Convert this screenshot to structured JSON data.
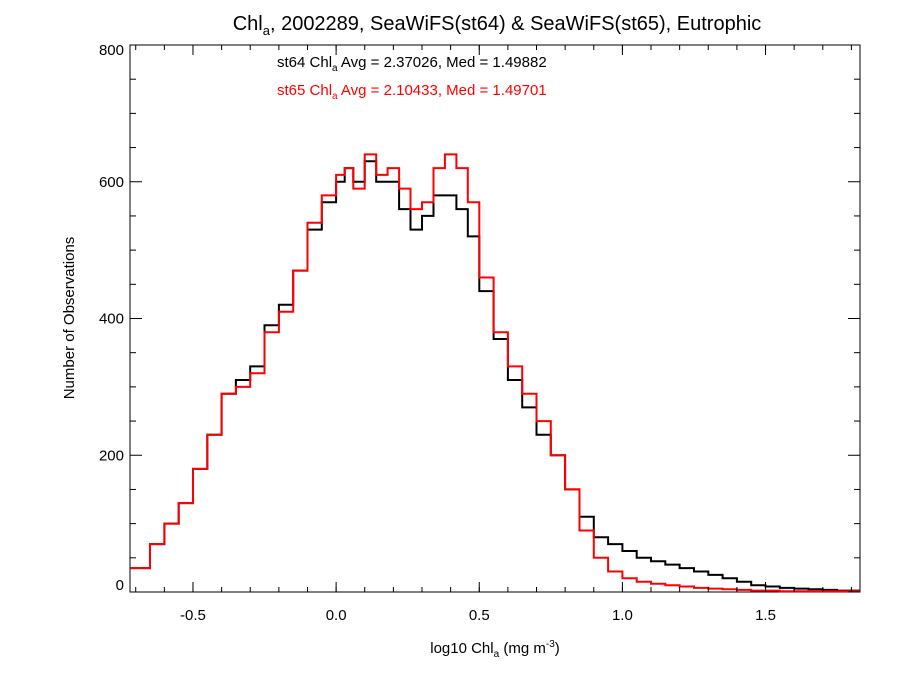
{
  "chart_data": {
    "type": "line",
    "step": true,
    "title": {
      "pre": "Chl",
      "sub": "a",
      "post": ", 2002289, SeaWiFS(st64) & SeaWiFS(st65), Eutrophic"
    },
    "xlabel": {
      "pre": "log10 Chl",
      "sub": "a",
      "mid": " (mg m",
      "sup": "-3",
      "post": ")"
    },
    "ylabel": "Number of Observations",
    "xlim": [
      -0.72,
      1.83
    ],
    "ylim": [
      0,
      800
    ],
    "xticks": [
      "-0.5",
      "0.0",
      "0.5",
      "1.0",
      "1.5"
    ],
    "yticks": [
      "0",
      "200",
      "400",
      "600",
      "800"
    ],
    "grid": false,
    "annotations": [
      {
        "pre": "st64 Chl",
        "sub": "a",
        "post": " Avg = 2.37026, Med = 1.49882",
        "color": "#000000"
      },
      {
        "pre": "st65 Chl",
        "sub": "a",
        "post": " Avg = 2.10433, Med = 1.49701",
        "color": "#ff0000"
      }
    ],
    "series": [
      {
        "color": "#000000",
        "x": [
          -0.72,
          -0.65,
          -0.6,
          -0.55,
          -0.5,
          -0.45,
          -0.4,
          -0.35,
          -0.3,
          -0.25,
          -0.2,
          -0.15,
          -0.1,
          -0.05,
          0.0,
          0.03,
          0.06,
          0.1,
          0.14,
          0.18,
          0.22,
          0.26,
          0.3,
          0.34,
          0.38,
          0.42,
          0.46,
          0.5,
          0.55,
          0.6,
          0.65,
          0.7,
          0.75,
          0.8,
          0.85,
          0.9,
          0.95,
          1.0,
          1.05,
          1.1,
          1.15,
          1.2,
          1.25,
          1.3,
          1.35,
          1.4,
          1.45,
          1.5,
          1.55,
          1.6,
          1.65,
          1.7,
          1.75,
          1.83
        ],
        "y": [
          35,
          70,
          100,
          130,
          180,
          230,
          290,
          310,
          330,
          390,
          420,
          470,
          530,
          570,
          600,
          620,
          600,
          630,
          600,
          600,
          560,
          530,
          550,
          580,
          580,
          560,
          520,
          440,
          370,
          310,
          270,
          230,
          200,
          150,
          110,
          80,
          70,
          60,
          50,
          45,
          40,
          35,
          30,
          25,
          20,
          15,
          10,
          8,
          6,
          5,
          4,
          3,
          2,
          2
        ]
      },
      {
        "color": "#ff0000",
        "x": [
          -0.72,
          -0.65,
          -0.6,
          -0.55,
          -0.5,
          -0.45,
          -0.4,
          -0.35,
          -0.3,
          -0.25,
          -0.2,
          -0.15,
          -0.1,
          -0.05,
          0.0,
          0.03,
          0.06,
          0.1,
          0.14,
          0.18,
          0.22,
          0.26,
          0.3,
          0.34,
          0.38,
          0.42,
          0.46,
          0.5,
          0.55,
          0.6,
          0.65,
          0.7,
          0.75,
          0.8,
          0.85,
          0.9,
          0.95,
          1.0,
          1.05,
          1.1,
          1.15,
          1.2,
          1.25,
          1.3,
          1.35,
          1.4,
          1.45,
          1.5,
          1.55,
          1.6,
          1.65,
          1.7,
          1.75,
          1.83
        ],
        "y": [
          35,
          70,
          100,
          130,
          180,
          230,
          290,
          300,
          320,
          380,
          410,
          470,
          540,
          580,
          610,
          620,
          590,
          640,
          610,
          620,
          590,
          560,
          570,
          620,
          640,
          620,
          570,
          460,
          380,
          330,
          290,
          250,
          200,
          150,
          90,
          50,
          30,
          20,
          15,
          12,
          10,
          8,
          6,
          5,
          4,
          3,
          2,
          2,
          1,
          1,
          1,
          1,
          1,
          1
        ]
      }
    ]
  }
}
